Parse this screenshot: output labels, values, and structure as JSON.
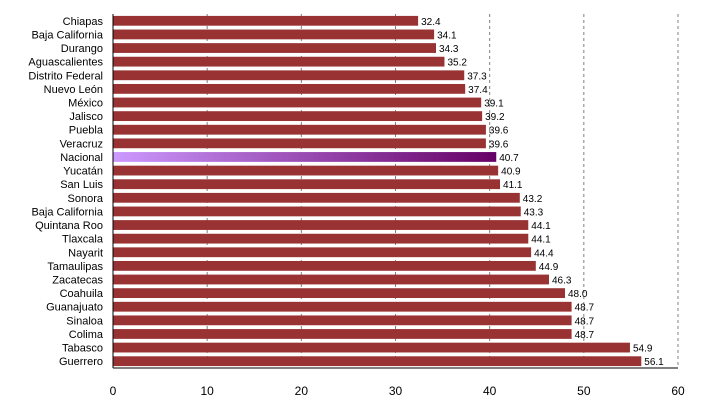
{
  "chart_data": {
    "type": "bar",
    "orientation": "horizontal",
    "title": "",
    "xlabel": "",
    "ylabel": "",
    "xlim": [
      0,
      60
    ],
    "x_ticks": [
      0,
      10,
      20,
      30,
      40,
      50,
      60
    ],
    "grid": "vertical dashed at 30, 40, 50, 60",
    "legend": "none",
    "bar_color": "#993333",
    "highlight_category": "Nacional",
    "highlight_gradient": [
      "#cc99ff",
      "#660066"
    ],
    "categories": [
      "Chiapas",
      "Baja California",
      "Durango",
      "Aguascalientes",
      "Distrito Federal",
      "Nuevo León",
      "México",
      "Jalisco",
      "Puebla",
      "Veracruz",
      "Nacional",
      "Yucatán",
      "San Luis",
      "Sonora",
      "Baja California",
      "Quintana Roo",
      "Tlaxcala",
      "Nayarit",
      "Tamaulipas",
      "Zacatecas",
      "Coahuila",
      "Guanajuato",
      "Sinaloa",
      "Colima",
      "Tabasco",
      "Guerrero"
    ],
    "values": [
      32.4,
      34.1,
      34.3,
      35.2,
      37.3,
      37.4,
      39.1,
      39.2,
      39.6,
      39.6,
      40.7,
      40.9,
      41.1,
      43.2,
      43.3,
      44.1,
      44.1,
      44.4,
      44.9,
      46.3,
      48.0,
      48.7,
      48.7,
      48.7,
      54.9,
      56.1
    ],
    "value_labels": [
      "32.4",
      "34.1",
      "34.3",
      "35.2",
      "37.3",
      "37.4",
      "39.1",
      "39.2",
      "39.6",
      "39.6",
      "40.7",
      "40.9",
      "41.1",
      "43.2",
      "43.3",
      "44.1",
      "44.1",
      "44.4",
      "44.9",
      "46.3",
      "48.0",
      "48.7",
      "48.7",
      "48.7",
      "54.9",
      "56.1"
    ]
  }
}
